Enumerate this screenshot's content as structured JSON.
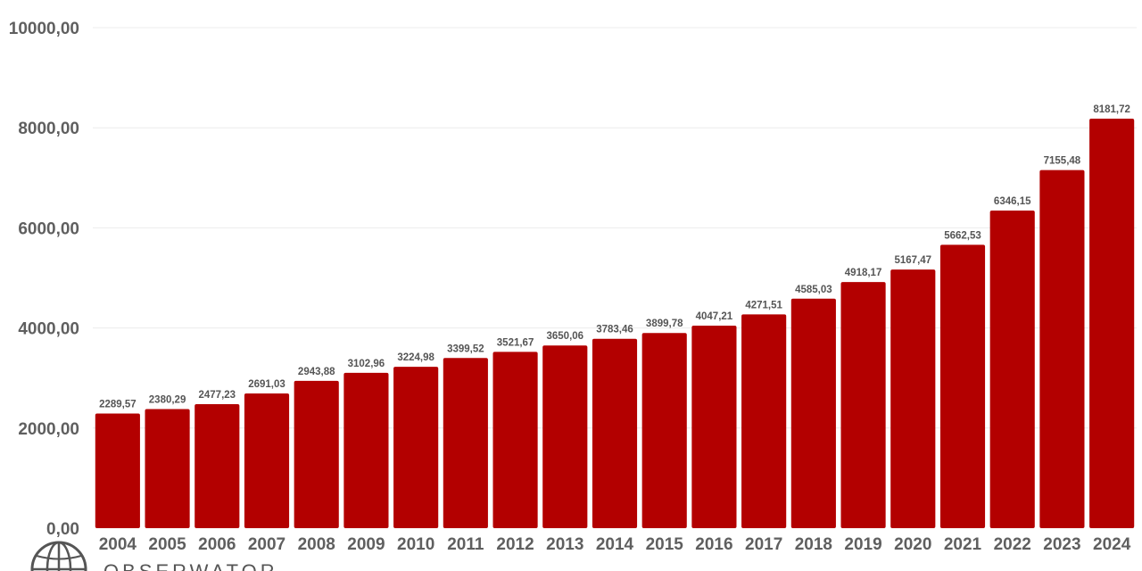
{
  "chart_data": {
    "type": "bar",
    "title": "",
    "xlabel": "",
    "ylabel": "",
    "ylim": [
      0,
      10000
    ],
    "yticks": [
      0,
      2000,
      4000,
      6000,
      8000,
      10000
    ],
    "ytick_labels": [
      "0,00",
      "2000,00",
      "4000,00",
      "6000,00",
      "8000,00",
      "10000,00"
    ],
    "grid": true,
    "bar_color": "#b30000",
    "categories": [
      "2004",
      "2005",
      "2006",
      "2007",
      "2008",
      "2009",
      "2010",
      "2011",
      "2012",
      "2013",
      "2014",
      "2015",
      "2016",
      "2017",
      "2018",
      "2019",
      "2020",
      "2021",
      "2022",
      "2023",
      "2024"
    ],
    "values": [
      2289.57,
      2380.29,
      2477.23,
      2691.03,
      2943.88,
      3102.96,
      3224.98,
      3399.52,
      3521.67,
      3650.06,
      3783.46,
      3899.78,
      4047.21,
      4271.51,
      4585.03,
      4918.17,
      5167.47,
      5662.53,
      6346.15,
      7155.48,
      8181.72
    ],
    "value_labels": [
      "2289,57",
      "2380,29",
      "2477,23",
      "2691,03",
      "2943,88",
      "3102,96",
      "3224,98",
      "3399,52",
      "3521,67",
      "3650,06",
      "3783,46",
      "3899,78",
      "4047,21",
      "4271,51",
      "4585,03",
      "4918,17",
      "5167,47",
      "5662,53",
      "6346,15",
      "7155,48",
      "8181,72"
    ]
  },
  "logo": {
    "text": "OBSERWATOR",
    "icon": "globe-icon",
    "color": "#555555"
  }
}
